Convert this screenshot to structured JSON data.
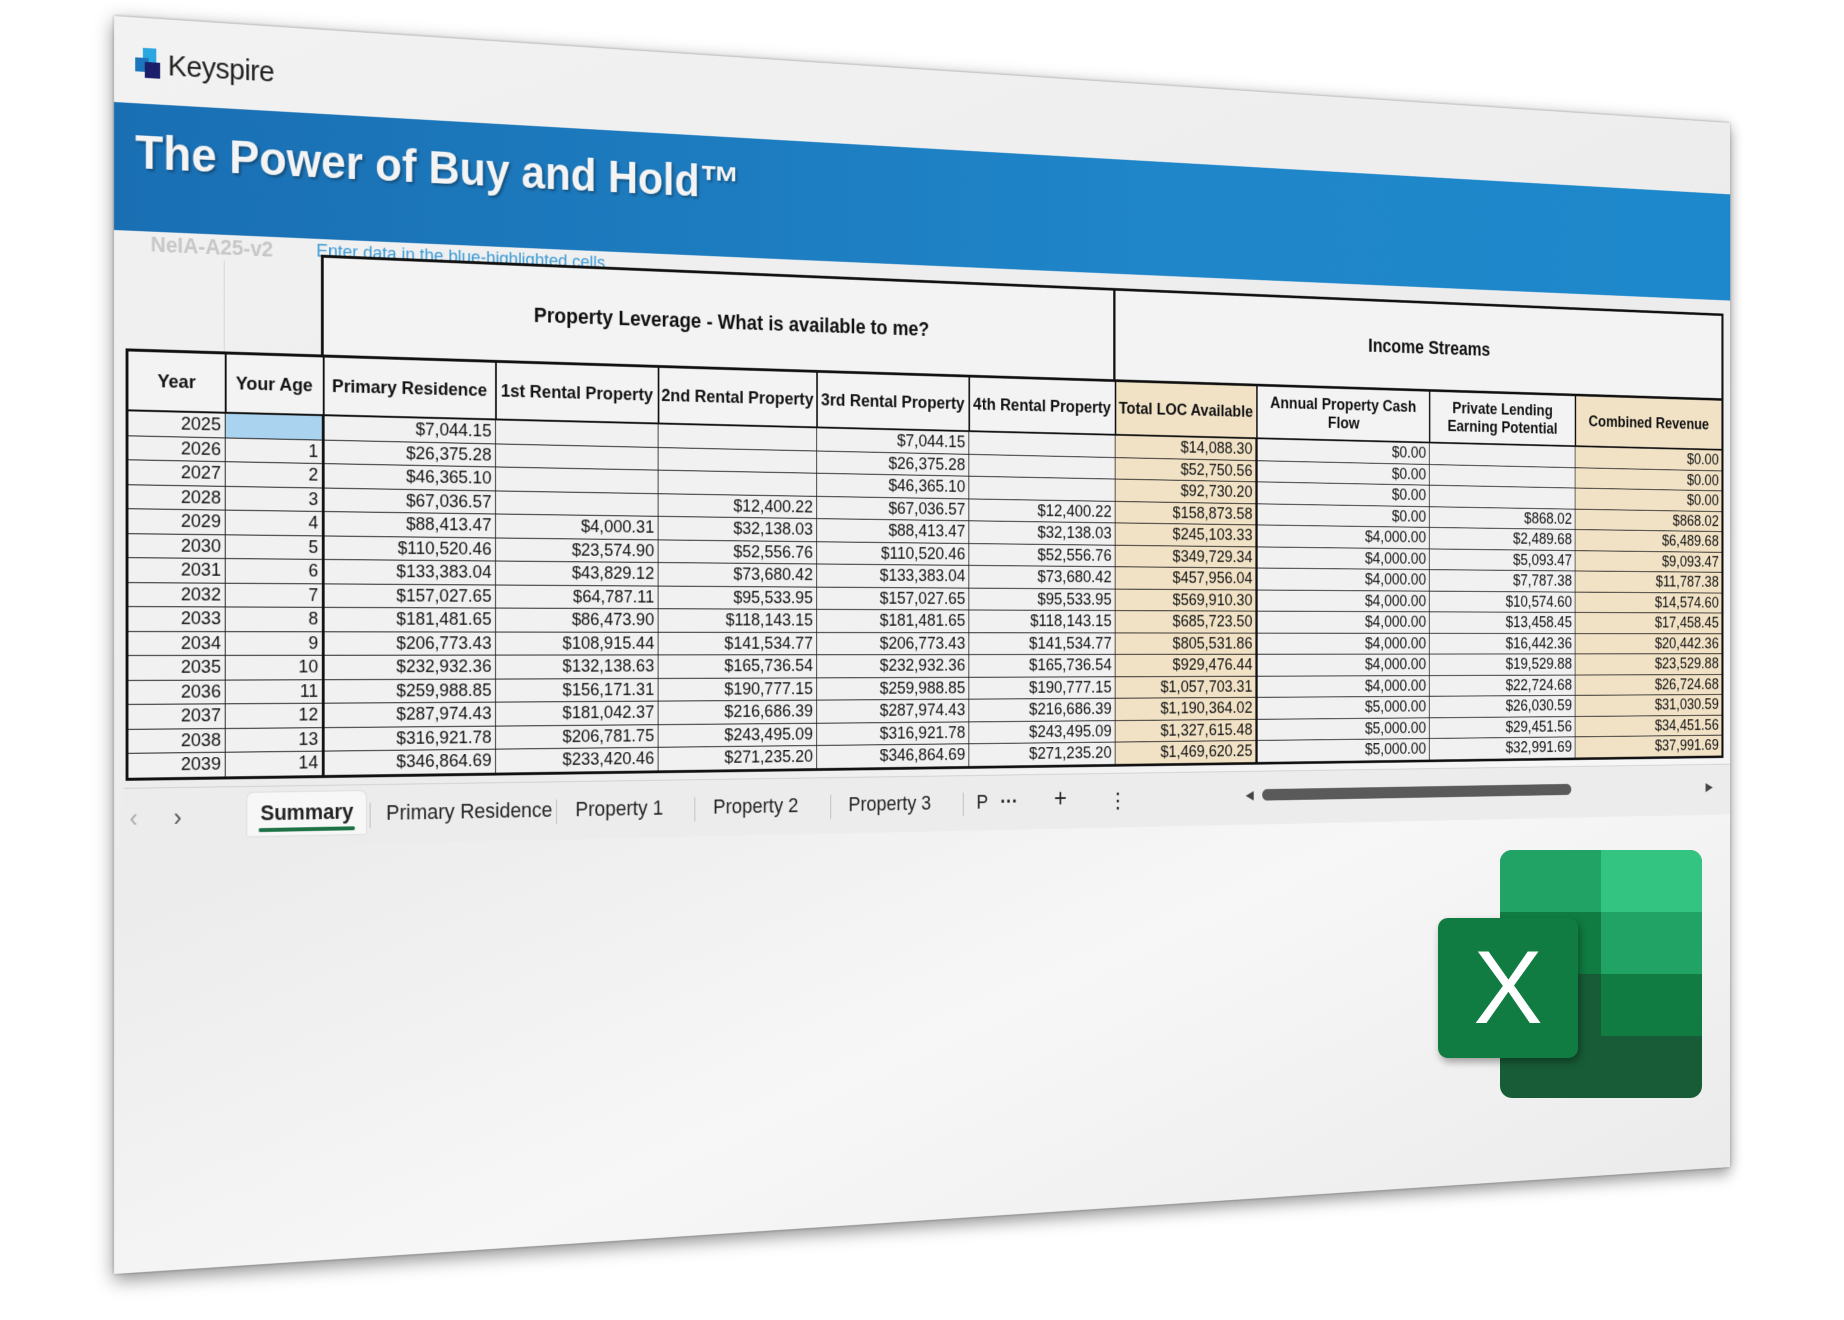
{
  "brand": {
    "name": "Keyspire"
  },
  "header": {
    "title": "The Power of Buy and Hold™",
    "version": "NeIA-A25-v2",
    "hint": "Enter data in the blue-highlighted cells"
  },
  "groups": {
    "leverage": "Property Leverage - What is available to me?",
    "income": "Income Streams"
  },
  "columns": [
    "Year",
    "Your Age",
    "Primary Residence",
    "1st Rental Property",
    "2nd Rental Property",
    "3rd Rental Property",
    "4th Rental Property",
    "Total LOC Available",
    "Annual Property Cash Flow",
    "Private Lending Earning Potential",
    "Combined Revenue"
  ],
  "rows": [
    [
      "2025",
      "",
      "$7,044.15",
      "",
      "",
      "$7,044.15",
      "",
      "$14,088.30",
      "$0.00",
      "",
      "$0.00"
    ],
    [
      "2026",
      "1",
      "$26,375.28",
      "",
      "",
      "$26,375.28",
      "",
      "$52,750.56",
      "$0.00",
      "",
      "$0.00"
    ],
    [
      "2027",
      "2",
      "$46,365.10",
      "",
      "",
      "$46,365.10",
      "",
      "$92,730.20",
      "$0.00",
      "",
      "$0.00"
    ],
    [
      "2028",
      "3",
      "$67,036.57",
      "",
      "$12,400.22",
      "$67,036.57",
      "$12,400.22",
      "$158,873.58",
      "$0.00",
      "$868.02",
      "$868.02"
    ],
    [
      "2029",
      "4",
      "$88,413.47",
      "$4,000.31",
      "$32,138.03",
      "$88,413.47",
      "$32,138.03",
      "$245,103.33",
      "$4,000.00",
      "$2,489.68",
      "$6,489.68"
    ],
    [
      "2030",
      "5",
      "$110,520.46",
      "$23,574.90",
      "$52,556.76",
      "$110,520.46",
      "$52,556.76",
      "$349,729.34",
      "$4,000.00",
      "$5,093.47",
      "$9,093.47"
    ],
    [
      "2031",
      "6",
      "$133,383.04",
      "$43,829.12",
      "$73,680.42",
      "$133,383.04",
      "$73,680.42",
      "$457,956.04",
      "$4,000.00",
      "$7,787.38",
      "$11,787.38"
    ],
    [
      "2032",
      "7",
      "$157,027.65",
      "$64,787.11",
      "$95,533.95",
      "$157,027.65",
      "$95,533.95",
      "$569,910.30",
      "$4,000.00",
      "$10,574.60",
      "$14,574.60"
    ],
    [
      "2033",
      "8",
      "$181,481.65",
      "$86,473.90",
      "$118,143.15",
      "$181,481.65",
      "$118,143.15",
      "$685,723.50",
      "$4,000.00",
      "$13,458.45",
      "$17,458.45"
    ],
    [
      "2034",
      "9",
      "$206,773.43",
      "$108,915.44",
      "$141,534.77",
      "$206,773.43",
      "$141,534.77",
      "$805,531.86",
      "$4,000.00",
      "$16,442.36",
      "$20,442.36"
    ],
    [
      "2035",
      "10",
      "$232,932.36",
      "$132,138.63",
      "$165,736.54",
      "$232,932.36",
      "$165,736.54",
      "$929,476.44",
      "$4,000.00",
      "$19,529.88",
      "$23,529.88"
    ],
    [
      "2036",
      "11",
      "$259,988.85",
      "$156,171.31",
      "$190,777.15",
      "$259,988.85",
      "$190,777.15",
      "$1,057,703.31",
      "$4,000.00",
      "$22,724.68",
      "$26,724.68"
    ],
    [
      "2037",
      "12",
      "$287,974.43",
      "$181,042.37",
      "$216,686.39",
      "$287,974.43",
      "$216,686.39",
      "$1,190,364.02",
      "$5,000.00",
      "$26,030.59",
      "$31,030.59"
    ],
    [
      "2038",
      "13",
      "$316,921.78",
      "$206,781.75",
      "$243,495.09",
      "$316,921.78",
      "$243,495.09",
      "$1,327,615.48",
      "$5,000.00",
      "$29,451.56",
      "$34,451.56"
    ],
    [
      "2039",
      "14",
      "$346,864.69",
      "$233,420.46",
      "$271,235.20",
      "$346,864.69",
      "$271,235.20",
      "$1,469,620.25",
      "$5,000.00",
      "$32,991.69",
      "$37,991.69"
    ]
  ],
  "sheet_tabs": {
    "prev": "‹",
    "next": "›",
    "tabs": [
      "Summary",
      "Primary Residence",
      "Property 1",
      "Property 2",
      "Property 3",
      "P"
    ],
    "active": "Summary",
    "more": "···",
    "add": "+",
    "options": "⋮"
  },
  "app_icon": {
    "letter": "X",
    "name": "excel-icon"
  },
  "colors": {
    "banner": "#1f86c9",
    "highlight_total": "#f1e2c6",
    "input_cell": "#a9d3ef",
    "active_tab": "#1e7145",
    "hint": "#3a9ad6"
  }
}
